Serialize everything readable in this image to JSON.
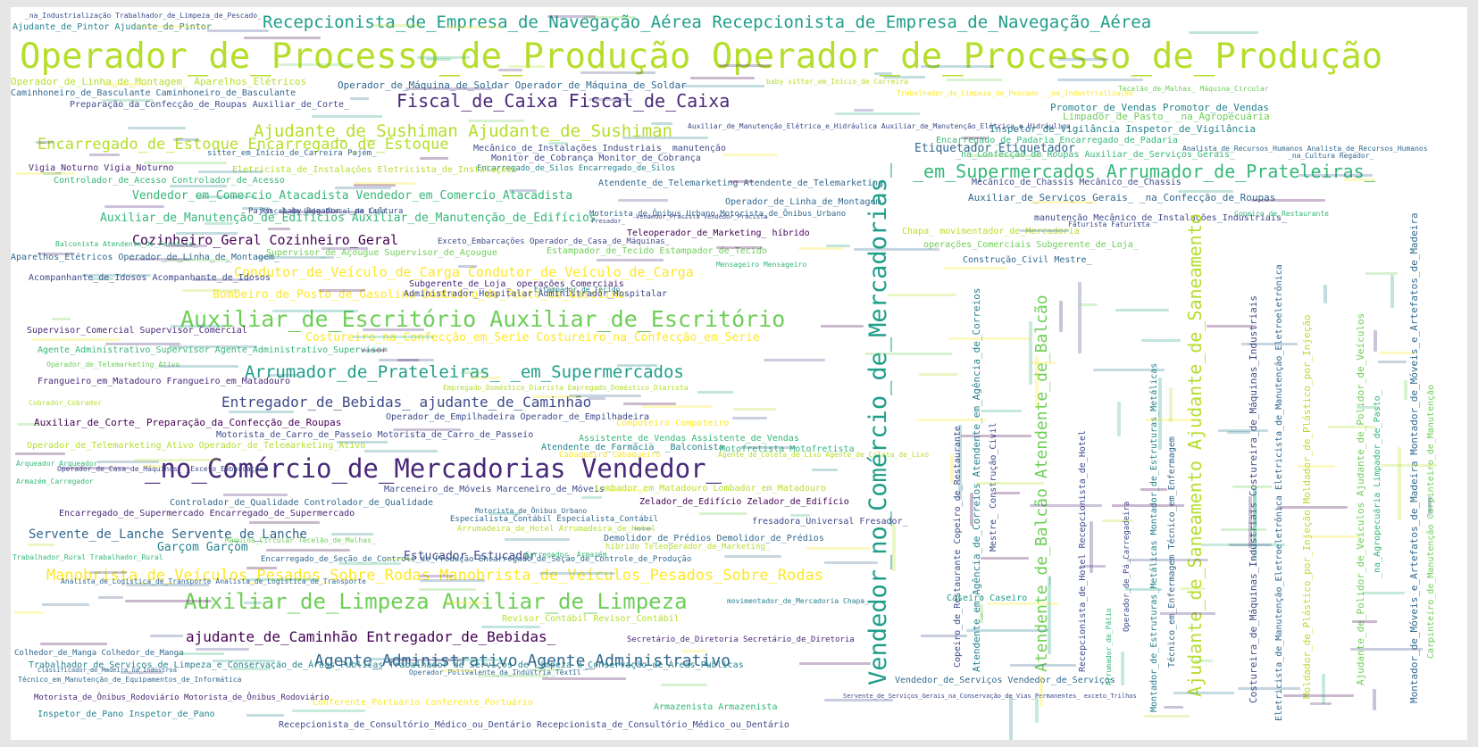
{
  "colors": {
    "frame": "#e6e6e6",
    "background": "#ffffff",
    "palette": [
      "#440154",
      "#482878",
      "#3e4a89",
      "#31688e",
      "#26828e",
      "#1f9e89",
      "#35b779",
      "#6ece58",
      "#b5de2b",
      "#fde725"
    ]
  },
  "words": [
    {
      "text": "Operador_de_Processo_de_Produção Operador_de_Processo_de_Produção",
      "color": "#b5de2b"
    },
    {
      "text": "Recepcionista_de_Empresa_de_Navegação_Aérea Recepcionista_de_Empresa_de_Navegação_Aérea",
      "color": "#1f9e89"
    },
    {
      "text": "Vendedor_no_Comércio_de_Mercadorias_",
      "color": "#1f9e89"
    },
    {
      "text": "Fiscal_de_Caixa Fiscal_de_Caixa",
      "color": "#482878"
    },
    {
      "text": "Ajudante_de_Sushiman Ajudante_de_Sushiman",
      "color": "#b5de2b"
    },
    {
      "text": "Encarregado_de_Estoque Encarregado_de_Estoque",
      "color": "#b5de2b"
    },
    {
      "text": "_em_Supermercados Arrumador_de_Prateleiras_",
      "color": "#35b779"
    },
    {
      "text": "Auxiliar_de_Escritório Auxiliar_de_Escritório",
      "color": "#6ece58"
    },
    {
      "text": "Arrumador_de_Prateleiras_ _em_Supermercados",
      "color": "#1f9e89"
    },
    {
      "text": "_no_Comércio_de_Mercadorias Vendedor_",
      "color": "#482878"
    },
    {
      "text": "Manobrista_de_Veículos_Pesados_Sobre_Rodas Manobrista_de_Veículos_Pesados_Sobre_Rodas",
      "color": "#fde725"
    },
    {
      "text": "Auxiliar_de_Limpeza Auxiliar_de_Limpeza",
      "color": "#6ece58"
    },
    {
      "text": "Agente_Administrativo Agente_Administrativo",
      "color": "#31688e"
    },
    {
      "text": "Ajudante_de_Saneamento Ajudante_de_Saneamento",
      "color": "#b5de2b"
    },
    {
      "text": "Atendente_de_Balcão Atendente_de_Balcão",
      "color": "#6ece58"
    },
    {
      "text": "Cozinheiro_Geral Cozinheiro_Geral",
      "color": "#440154"
    },
    {
      "text": "Entregador_de_Bebidas_ ajudante_de_Caminhão",
      "color": "#3e4a89"
    },
    {
      "text": "ajudante_de_Caminhão Entregador_de_Bebidas_",
      "color": "#440154"
    },
    {
      "text": "Vendedor_em_Comercio_Atacadista Vendedor_em_Comercio_Atacadista",
      "color": "#35b779"
    },
    {
      "text": "Condutor_de_Veículo_de_Carga Condutor_de_Veículo_de_Carga",
      "color": "#fde725"
    },
    {
      "text": "Auxiliar_de_Manutenção_de_Edifícios Auxiliar_de_Manutenção_de_Edifícios",
      "color": "#35b779"
    },
    {
      "text": "Costureiro_na_Confecção_em_Serie Costureiro_na_Confecção_em_Serie",
      "color": "#fde725"
    },
    {
      "text": "Bombeiro_de_Posto_de_Gasolina Bombeiro_de_Posto_de_Gasolina",
      "color": "#fde725"
    },
    {
      "text": "Servente_de_Lanche Servente_de_Lanche",
      "color": "#31688e"
    },
    {
      "text": "Garçom Garçom",
      "color": "#26828e"
    },
    {
      "text": "Estucador Estucador",
      "color": "#3e4a89"
    },
    {
      "text": "Operador_de_Máquina_de_Soldar Operador_de_Máquina_de_Soldar",
      "color": "#31688e"
    },
    {
      "text": "Operador_de_Linha_de_Montagem_ Aparelhos_Elétricos",
      "color": "#b5de2b"
    },
    {
      "text": "Caminhoneiro_de_Basculante Caminhoneiro_de_Basculante",
      "color": "#31688e"
    },
    {
      "text": "Preparação_da_Confecção_de_Roupas Auxiliar_de_Corte_",
      "color": "#3e4a89"
    },
    {
      "text": "Ajudante_de_Pintor Ajudante_de_Pintor",
      "color": "#26828e"
    },
    {
      "text": "_na_Industrialização Trabalhador_de_Limpeza_de_Pescado_",
      "color": "#3e4a89"
    },
    {
      "text": "Etiquetador Etiquetador",
      "color": "#31688e"
    },
    {
      "text": "Promotor_de_Vendas Promotor_de_Vendas",
      "color": "#26828e"
    },
    {
      "text": "Limpador_de_Pasto_ _na_Agropecuária",
      "color": "#6ece58"
    },
    {
      "text": "Inspetor_de_Vigilância Inspetor_de_Vigilância",
      "color": "#26828e"
    },
    {
      "text": "Encarregado_de_Padaria Encarregado_de_Padaria",
      "color": "#35b779"
    },
    {
      "text": "_na_Confecção_de_Roupas Auxiliar_de_Serviços_Gerais_",
      "color": "#35b779"
    },
    {
      "text": "Mecânico_de_Instalações_Industriais_ manutenção",
      "color": "#3e4a89"
    },
    {
      "text": "Monitor_de_Cobrança Monitor_de_Cobrança",
      "color": "#3e4a89"
    },
    {
      "text": "Encarregado_de_Silos Encarregado_de_Silos",
      "color": "#26828e"
    },
    {
      "text": "Atendente_de_Telemarketing Atendente_de_Telemarketing",
      "color": "#31688e"
    },
    {
      "text": "Vigia_Noturno Vigia_Noturno",
      "color": "#482878"
    },
    {
      "text": "Controlador_de_Acesso Controlador_de_Acesso",
      "color": "#35b779"
    },
    {
      "text": "Eletricista_de_Instalações Eletricista_de_Instalações",
      "color": "#b5de2b"
    },
    {
      "text": "Motorista_de_Ônibus_Urbano Motorista_de_Ônibus_Urbano",
      "color": "#31688e"
    },
    {
      "text": "Teleoperador_de_Marketing_ híbrido",
      "color": "#440154"
    },
    {
      "text": "Exceto_Embarcações Operador_de_Casa_de_Máquinas_",
      "color": "#3e4a89"
    },
    {
      "text": "Aparelhos_Elétricos Operador_de_Linha_de_Montagem_",
      "color": "#31688e"
    },
    {
      "text": "Supervisor_de_Açougue Supervisor_de_Açougue",
      "color": "#6ece58"
    },
    {
      "text": "Estampador_de_Tecido Estampador_de_Tecido",
      "color": "#6ece58"
    },
    {
      "text": "Acompanhante_de_Idosos Acompanhante_de_Idosos",
      "color": "#3e4a89"
    },
    {
      "text": "Subgerente_de_Loja_ operações_Comerciais",
      "color": "#482878"
    },
    {
      "text": "Administrador_Hospitalar Administrador_Hospitalar",
      "color": "#3e4a89"
    },
    {
      "text": "Supervisor_Comercial Supervisor_Comercial",
      "color": "#482878"
    },
    {
      "text": "Agente_Administrativo_Supervisor Agente_Administrativo_Supervisor",
      "color": "#35b779"
    },
    {
      "text": "Frangueiro_em_Matadouro Frangueiro_em_Matadouro",
      "color": "#482878"
    },
    {
      "text": "Auxiliar_de_Corte_ Preparação_da_Confecção_de_Roupas",
      "color": "#440154"
    },
    {
      "text": "Operador_de_Empilhadeira Operador_de_Empilhadeira",
      "color": "#3e4a89"
    },
    {
      "text": "Motorista_de_Carro_de_Passeio Motorista_de_Carro_de_Passeio",
      "color": "#3e4a89"
    },
    {
      "text": "Operador_de_Telemarketing_Ativo Operador_de_Telemarketing_Ativo",
      "color": "#b5de2b"
    },
    {
      "text": "Assistente_de_Vendas Assistente_de_Vendas",
      "color": "#35b779"
    },
    {
      "text": "Atendente_de_Farmácia_ _Balconista",
      "color": "#26828e"
    },
    {
      "text": "Motofretista Motofretista",
      "color": "#35b779"
    },
    {
      "text": "Marceneiro_de_Móveis Marceneiro_de_Móveis",
      "color": "#3e4a89"
    },
    {
      "text": "Lombador_em_Matadouro Lombador_em_Matadouro",
      "color": "#b5de2b"
    },
    {
      "text": "Controlador_de_Qualidade Controlador_de_Qualidade",
      "color": "#31688e"
    },
    {
      "text": "Zelador_de_Edifício Zelador_de_Edifício",
      "color": "#440154"
    },
    {
      "text": "Encarregado_de_Supermercado Encarregado_de_Supermercado",
      "color": "#482878"
    },
    {
      "text": "fresadora_Universal Fresador_",
      "color": "#3e4a89"
    },
    {
      "text": "Arrumadeira_de_Hotel Arrumadeira_de_Hotel",
      "color": "#b5de2b"
    },
    {
      "text": "Demolidor_de_Prédios Demolidor_de_Prédios",
      "color": "#31688e"
    },
    {
      "text": "híbrido Teleoperador_de_Marketing_",
      "color": "#b5de2b"
    },
    {
      "text": "Encarregado_de_Seção_de_Controle_de_Produção Encarregado_de_Seção_de_Controle_de_Produção",
      "color": "#31688e"
    },
    {
      "text": "Revisor_Contábil Revisor_Contábil",
      "color": "#b5de2b"
    },
    {
      "text": "Trabalhador_de_Serviços_de_Limpeza_e_Conservação_de_Áreas_Publicas Trabalhador_de_Serviços_de_Limpeza_e_Conservação_de_Áreas_Publicas",
      "color": "#26828e"
    },
    {
      "text": "Colhedor_de_Manga Colhedor_de_Manga",
      "color": "#31688e"
    },
    {
      "text": "Inspetor_de_Pano Inspetor_de_Pano",
      "color": "#26828e"
    },
    {
      "text": "Recepcionista_de_Consultório_Médico_ou_Dentário Recepcionista_de_Consultório_Médico_ou_Dentário",
      "color": "#3e4a89"
    },
    {
      "text": "Armazenista Armazenista",
      "color": "#35b779"
    },
    {
      "text": "Conferente_Portuário Conferente_Portuário",
      "color": "#fde725"
    },
    {
      "text": "Vendedor_de_Serviços Vendedor_de_Serviços",
      "color": "#31688e"
    },
    {
      "text": "Caseiro Caseiro",
      "color": "#1f9e89"
    },
    {
      "text": "Secretário_de_Diretoria Secretário_de_Diretoria",
      "color": "#482878"
    },
    {
      "text": "Servente_de_Serviços_Gerais_na_Conservação_de_Vias_Permanentes_ exceto_Trilhos",
      "color": "#3e4a89"
    },
    {
      "text": "Mecânico_de_Chassis Mecânico_de_Chassis",
      "color": "#3e4a89"
    },
    {
      "text": "Auxiliar_de_Serviços_Gerais_ _na_Confecção_de_Roupas",
      "color": "#31688e"
    },
    {
      "text": "manutenção Mecânico_de_Instalações_Industriais_",
      "color": "#3e4a89"
    },
    {
      "text": "Chapa_ movimentador_de_Mercadoria",
      "color": "#b5de2b"
    },
    {
      "text": "operações_Comerciais Subgerente_de_Loja_",
      "color": "#6ece58"
    },
    {
      "text": "Construção_Civil Mestre_",
      "color": "#31688e"
    },
    {
      "text": "Mensageiro Mensageiro",
      "color": "#35b779"
    },
    {
      "text": "Copeiro_de_Restaurante Copeiro_de_Restaurante",
      "color": "#3e4a89"
    },
    {
      "text": "Atendente_em_Agência_de_Correios Atendente_em_Agência_de_Correios",
      "color": "#26828e"
    },
    {
      "text": "Mestre_ Construção_Civil",
      "color": "#3e4a89"
    },
    {
      "text": "Recepcionista_de_Hotel Recepcionista_de_Hotel",
      "color": "#3e4a89"
    },
    {
      "text": "Técnico_em_Enfermagem Técnico_em_Enfermagem",
      "color": "#31688e"
    },
    {
      "text": "Montador_de_Estruturas_Metálicas Montador_de_Estruturas_Metálicas",
      "color": "#26828e"
    },
    {
      "text": "Costureira_de_Máquinas_Industriais Costureira_de_Máquinas_Industriais",
      "color": "#3e4a89"
    },
    {
      "text": "Moldador_de_Plástico_por_Injeção Moldador_de_Plástico_por_Injeção",
      "color": "#b5de2b"
    },
    {
      "text": "Ajudante_de_Polidor_de_Veículos Ajudante_de_Polidor_de_Veículos",
      "color": "#6ece58"
    },
    {
      "text": "Montador_de_Móveis_e_Artefatos_de_Madeira Montador_de_Móveis_e_Artefatos_de_Madeira",
      "color": "#31688e"
    },
    {
      "text": "Carpinteiro_de_Manutenção Carpinteiro_de_Manutenção",
      "color": "#6ece58"
    },
    {
      "text": "Eletricista_de_Manutenção_Eletroeletrônica Eletricista_de_Manutenção_Eletroeletrônica",
      "color": "#31688e"
    },
    {
      "text": "_na_Agropecuária Limpador_de_Pasto_",
      "color": "#35b779"
    },
    {
      "text": "Motorista_de_Ônibus_Rodoviário Motorista_de_Ônibus_Rodoviário",
      "color": "#482878"
    },
    {
      "text": "Estampador_de_Tecido",
      "color": "#26828e"
    },
    {
      "text": "Pajem_ baby Regador_ _na_Cultura",
      "color": "#3e4a89"
    },
    {
      "text": "Armazém_Carregador",
      "color": "#35b779"
    },
    {
      "text": "Carregador_ Armazém",
      "color": "#35b779"
    },
    {
      "text": "Faturista Faturista",
      "color": "#3e4a89"
    },
    {
      "text": "Analista_de_Recursos_Humanos Analista_de_Recursos_Humanos",
      "color": "#31688e"
    },
    {
      "text": "Arqueador Arqueador",
      "color": "#35b779"
    },
    {
      "text": "Fiscal_de_Loja Fiscal_de_Loja",
      "color": "#31688e"
    },
    {
      "text": "Cobrador_Cobrador",
      "color": "#b5de2b"
    },
    {
      "text": "Máquina_Circular Tecelão_de_Malhas_",
      "color": "#6ece58"
    },
    {
      "text": "Copeiro_de_Restaurante",
      "color": "#35b779"
    },
    {
      "text": "_na_Cultura Regador_",
      "color": "#31688e"
    },
    {
      "text": "Operador_de_Casa_de_Máquinas_ _Exceto_Embarcações",
      "color": "#3e4a89"
    },
    {
      "text": "Trabalhador_Rural Trabalhador_Rural",
      "color": "#35b779"
    },
    {
      "text": "Balconista Atendente_de_Farmácia_",
      "color": "#35b779"
    },
    {
      "text": "Auxiliar_de_Manutenção_Elétrica_e_Hidráulica Auxiliar_de_Manutenção_Elétrica_e_Hidráulica",
      "color": "#3e4a89"
    },
    {
      "text": "Vendedor_Pracista Vendedor_Pracista",
      "color": "#3e4a89"
    },
    {
      "text": "Motorista_de_Ônibus_Urbano",
      "color": "#31688e"
    },
    {
      "text": "Especialista_Contábil Especialista_Contábil",
      "color": "#31688e"
    },
    {
      "text": "Compoteiro Compoteiro",
      "color": "#fde725"
    },
    {
      "text": "Cabaqueiro Cabaqueiro",
      "color": "#fde725"
    },
    {
      "text": "Empregado_Doméstico_Diarista Empregado_Doméstico_Diarista",
      "color": "#b5de2b"
    },
    {
      "text": "Operador_de_Linha_de_Montagem",
      "color": "#31688e"
    },
    {
      "text": "Fresador_",
      "color": "#3e4a89"
    },
    {
      "text": "Operador_de_Telemarketing_Ativo",
      "color": "#6ece58"
    },
    {
      "text": "sitter_em_Início_de_Carreira Pajém_",
      "color": "#31688e"
    },
    {
      "text": "baby sitter_em_Início_de_Carreira",
      "color": "#b5de2b"
    },
    {
      "text": "Trabalhador_de_Limpeza_de_Pescado_ _na_Industrialização",
      "color": "#fde725"
    },
    {
      "text": "Tecelão_de_Malhas_ Máquina_Circular",
      "color": "#6ece58"
    },
    {
      "text": "Agente_de_Coleta_de_Lixo Agente_de_Coleta_de_Lixo",
      "color": "#b5de2b"
    },
    {
      "text": "Analista_de_Logística_de_Transporte Analista_de_Logística_de_Transporte",
      "color": "#31688e"
    },
    {
      "text": "Técnico_em_Manutenção_de_Equipamentos_de_Informática",
      "color": "#31688e"
    },
    {
      "text": "Classificador_de_Madeira_na_Indústria",
      "color": "#31688e"
    },
    {
      "text": "Operador_Polivalente_da_Indústria_Têxtil",
      "color": "#31688e"
    },
    {
      "text": "movimentador_de_Mercadoria Chapa_",
      "color": "#26828e"
    },
    {
      "text": "Operador_de_Pá_Carregadeira",
      "color": "#3e4a89"
    },
    {
      "text": "Arrumador_de_Pátio",
      "color": "#35b779"
    }
  ]
}
